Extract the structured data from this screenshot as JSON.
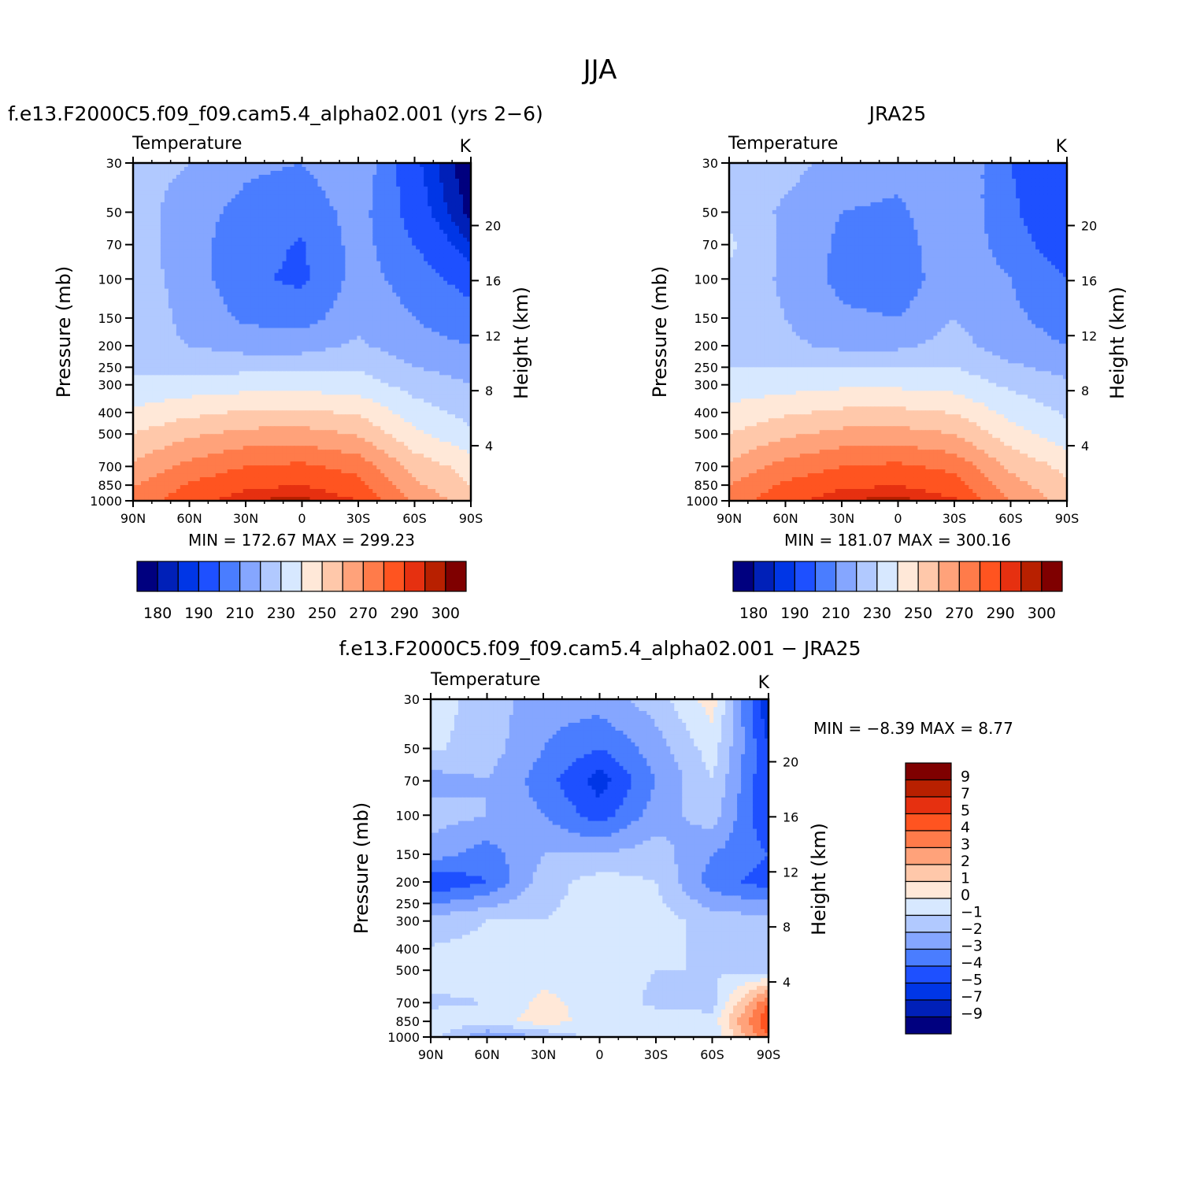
{
  "figure_title": "JJA",
  "panels": [
    {
      "title": "f.e13.F2000C5.f09_f09.cam5.4_alpha02.001 (yrs 2−6)",
      "left_label": "Temperature",
      "right_label": "K",
      "stats": "MIN =  172.67   MAX =  299.23"
    },
    {
      "title": "JRA25",
      "left_label": "Temperature",
      "right_label": "K",
      "stats": "MIN =  181.07   MAX =  300.16"
    },
    {
      "title": "f.e13.F2000C5.f09_f09.cam5.4_alpha02.001 − JRA25",
      "left_label": "Temperature",
      "right_label": "K",
      "stats": "MIN =   −8.39   MAX =    8.77"
    }
  ],
  "axes": {
    "ylabel": "Pressure (mb)",
    "y2label": "Height (km)",
    "pressure_ticks": [
      "30",
      "50",
      "70",
      "100",
      "150",
      "200",
      "250",
      "300",
      "400",
      "500",
      "700",
      "850",
      "1000"
    ],
    "height_ticks": [
      "20",
      "16",
      "12",
      "8",
      "4"
    ],
    "lat_ticks": [
      "90N",
      "60N",
      "30N",
      "0",
      "30S",
      "60S",
      "90S"
    ]
  },
  "colorbars": {
    "abs_labels": [
      "180",
      "190",
      "210",
      "230",
      "250",
      "270",
      "290",
      "300"
    ],
    "diff_labels": [
      "9",
      "7",
      "5",
      "4",
      "3",
      "2",
      "1",
      "0",
      "−1",
      "−2",
      "−3",
      "−4",
      "−5",
      "−7",
      "−9"
    ]
  },
  "chart_data": [
    {
      "type": "heatmap",
      "title": "f.e13.F2000C5.f09_f09.cam5.4_alpha02.001 (yrs 2−6)",
      "subtitle": "Temperature",
      "units": "K",
      "xlabel": "",
      "ylabel": "Pressure (mb)",
      "y2label": "Height (km)",
      "x": [
        90,
        60,
        30,
        0,
        -30,
        -60,
        -90
      ],
      "y": [
        30,
        50,
        70,
        100,
        150,
        200,
        300,
        500,
        700,
        850,
        1000
      ],
      "z": [
        [
          225,
          220,
          212,
          210,
          218,
          192,
          175
        ],
        [
          225,
          214,
          207,
          204,
          214,
          195,
          178
        ],
        [
          225,
          214,
          204,
          199,
          214,
          200,
          185
        ],
        [
          225,
          216,
          202,
          198,
          214,
          206,
          195
        ],
        [
          225,
          218,
          208,
          206,
          216,
          210,
          205
        ],
        [
          222,
          220,
          216,
          216,
          222,
          213,
          210
        ],
        [
          232,
          234,
          236,
          236,
          235,
          226,
          220
        ],
        [
          250,
          258,
          263,
          264,
          259,
          242,
          232
        ],
        [
          262,
          273,
          280,
          282,
          276,
          256,
          246
        ],
        [
          269,
          281,
          288,
          290,
          284,
          262,
          250
        ],
        [
          274,
          286,
          295,
          297,
          290,
          268,
          255
        ]
      ],
      "levels": [
        180,
        185,
        190,
        200,
        210,
        220,
        230,
        240,
        250,
        260,
        270,
        280,
        290,
        295,
        300
      ],
      "colors": [
        "#00007f",
        "#0020b8",
        "#0036e6",
        "#1e50ff",
        "#4a7dff",
        "#85a6ff",
        "#b1c9ff",
        "#d7e8ff",
        "#ffe8d8",
        "#ffc8aa",
        "#ffa27a",
        "#ff7b4a",
        "#ff5420",
        "#e63010",
        "#b82000",
        "#7f0000"
      ],
      "stats": {
        "min": 172.67,
        "max": 299.23
      }
    },
    {
      "type": "heatmap",
      "title": "JRA25",
      "subtitle": "Temperature",
      "units": "K",
      "xlabel": "",
      "ylabel": "Pressure (mb)",
      "y2label": "Height (km)",
      "x": [
        90,
        60,
        30,
        0,
        -30,
        -60,
        -90
      ],
      "y": [
        30,
        50,
        70,
        100,
        150,
        200,
        300,
        500,
        700,
        850,
        1000
      ],
      "z": [
        [
          228,
          224,
          216,
          214,
          220,
          200,
          190
        ],
        [
          228,
          218,
          210,
          208,
          218,
          202,
          190
        ],
        [
          232,
          218,
          208,
          205,
          218,
          205,
          193
        ],
        [
          228,
          218,
          207,
          203,
          218,
          210,
          200
        ],
        [
          228,
          220,
          212,
          210,
          220,
          212,
          206
        ],
        [
          226,
          222,
          218,
          218,
          224,
          214,
          210
        ],
        [
          234,
          236,
          238,
          238,
          236,
          228,
          222
        ],
        [
          250,
          258,
          263,
          264,
          260,
          244,
          234
        ],
        [
          262,
          274,
          280,
          282,
          277,
          258,
          247
        ],
        [
          270,
          282,
          288,
          290,
          285,
          264,
          252
        ],
        [
          275,
          287,
          295,
          297,
          291,
          270,
          256
        ]
      ],
      "levels": [
        180,
        185,
        190,
        200,
        210,
        220,
        230,
        240,
        250,
        260,
        270,
        280,
        290,
        295,
        300
      ],
      "colors": [
        "#00007f",
        "#0020b8",
        "#0036e6",
        "#1e50ff",
        "#4a7dff",
        "#85a6ff",
        "#b1c9ff",
        "#d7e8ff",
        "#ffe8d8",
        "#ffc8aa",
        "#ffa27a",
        "#ff7b4a",
        "#ff5420",
        "#e63010",
        "#b82000",
        "#7f0000"
      ],
      "stats": {
        "min": 181.07,
        "max": 300.16
      }
    },
    {
      "type": "heatmap",
      "title": "f.e13.F2000C5.f09_f09.cam5.4_alpha02.001 − JRA25",
      "subtitle": "Temperature",
      "units": "K",
      "xlabel": "",
      "ylabel": "Pressure (mb)",
      "y2label": "Height (km)",
      "x": [
        90,
        60,
        30,
        0,
        -30,
        -60,
        -90
      ],
      "y": [
        30,
        50,
        70,
        100,
        150,
        200,
        300,
        500,
        700,
        850,
        1000
      ],
      "z": [
        [
          -0.5,
          -1.5,
          -2.5,
          -2.5,
          -1.5,
          0.5,
          -6
        ],
        [
          -0.8,
          -1.5,
          -3,
          -4,
          -2.5,
          -0.5,
          -5
        ],
        [
          -2.5,
          -2,
          -3.5,
          -5.5,
          -3,
          -1,
          -5
        ],
        [
          -1.5,
          -2,
          -3,
          -4.5,
          -2.5,
          -1.5,
          -5
        ],
        [
          -2.5,
          -3.5,
          -2,
          -2,
          -1.5,
          -3,
          -4
        ],
        [
          -5,
          -4,
          -1.5,
          -0.5,
          -1,
          -3.5,
          -4.5
        ],
        [
          -1.5,
          -1,
          -1,
          -0.5,
          -0.5,
          -1.5,
          -1.5
        ],
        [
          -0.5,
          -0.5,
          -0.5,
          -0.5,
          -1,
          -1,
          -1.5
        ],
        [
          -1.2,
          -1,
          0.3,
          -0.5,
          -1.2,
          -1.5,
          4
        ],
        [
          -0.5,
          -0.5,
          0.5,
          -0.5,
          -0.5,
          -0.5,
          5
        ],
        [
          -0.5,
          -3,
          -2,
          -0.5,
          -1,
          -1,
          4
        ]
      ],
      "levels": [
        -9,
        -7,
        -5,
        -4,
        -3,
        -2,
        -1,
        0,
        1,
        2,
        3,
        4,
        5,
        7,
        9
      ],
      "colors": [
        "#00007f",
        "#0020b8",
        "#0036e6",
        "#1e50ff",
        "#4a7dff",
        "#85a6ff",
        "#b1c9ff",
        "#d7e8ff",
        "#ffe8d8",
        "#ffc8aa",
        "#ffa27a",
        "#ff7b4a",
        "#ff5420",
        "#e63010",
        "#b82000",
        "#7f0000"
      ],
      "stats": {
        "min": -8.39,
        "max": 8.77
      }
    }
  ]
}
